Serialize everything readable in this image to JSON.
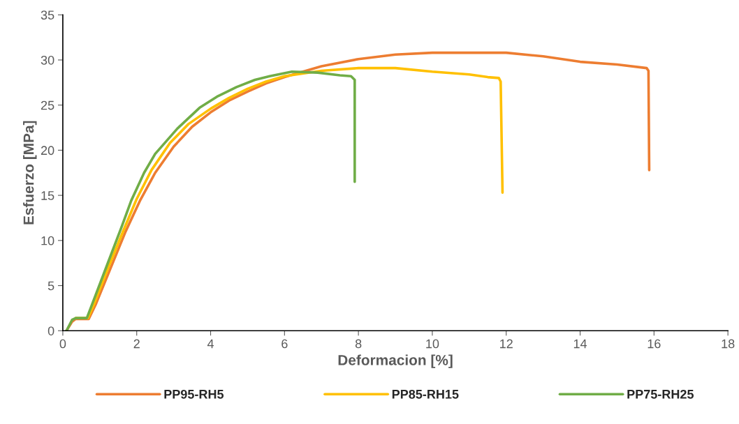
{
  "chart_data": {
    "type": "line",
    "xlabel": "Deformacion [%]",
    "ylabel": "Esfuerzo [MPa]",
    "xlim": [
      0,
      18
    ],
    "xticks": [
      0,
      2,
      4,
      6,
      8,
      10,
      12,
      14,
      16,
      18
    ],
    "ylim": [
      0,
      35
    ],
    "yticks": [
      0,
      5,
      10,
      15,
      20,
      25,
      30,
      35
    ],
    "grid": false,
    "legend": "bottom",
    "marker": "none",
    "line_style": "solid",
    "series": [
      {
        "name": "PP95-RH5",
        "color": "#ed7d31",
        "x": [
          0.1,
          0.25,
          0.35,
          0.7,
          0.9,
          1.3,
          1.7,
          2.1,
          2.5,
          3.0,
          3.5,
          4.0,
          4.5,
          5.0,
          5.5,
          6.0,
          7.0,
          8.0,
          9.0,
          10.0,
          11.0,
          12.0,
          13.0,
          14.0,
          15.0,
          15.8,
          15.85,
          15.87
        ],
        "values": [
          0,
          1.0,
          1.3,
          1.3,
          3.0,
          7.0,
          11.0,
          14.5,
          17.5,
          20.4,
          22.6,
          24.2,
          25.5,
          26.5,
          27.4,
          28.1,
          29.3,
          30.1,
          30.6,
          30.8,
          30.8,
          30.8,
          30.4,
          29.8,
          29.5,
          29.1,
          28.8,
          17.8
        ]
      },
      {
        "name": "PP85-RH15",
        "color": "#ffc000",
        "x": [
          0.35,
          0.68,
          0.85,
          1.25,
          1.65,
          2.0,
          2.4,
          2.9,
          3.4,
          4.0,
          4.5,
          5.0,
          5.5,
          6.0,
          7.0,
          8.0,
          9.0,
          10.0,
          11.0,
          11.5,
          11.8,
          11.85,
          11.9
        ],
        "values": [
          1.4,
          1.4,
          3.0,
          7.2,
          11.2,
          14.6,
          17.8,
          20.8,
          22.9,
          24.6,
          25.8,
          26.8,
          27.6,
          28.2,
          28.8,
          29.1,
          29.1,
          28.7,
          28.4,
          28.1,
          28.0,
          27.6,
          15.3
        ]
      },
      {
        "name": "PP75-RH25",
        "color": "#70ad47",
        "x": [
          0.1,
          0.25,
          0.35,
          0.65,
          0.8,
          1.2,
          1.6,
          1.85,
          2.2,
          2.5,
          3.1,
          3.7,
          4.2,
          4.7,
          5.2,
          5.6,
          6.2,
          6.9,
          7.5,
          7.8,
          7.9,
          7.9
        ],
        "values": [
          0,
          1.2,
          1.4,
          1.4,
          3.0,
          7.3,
          11.6,
          14.4,
          17.5,
          19.6,
          22.4,
          24.7,
          26.0,
          27.0,
          27.8,
          28.2,
          28.7,
          28.6,
          28.3,
          28.2,
          27.8,
          16.5
        ]
      }
    ]
  }
}
